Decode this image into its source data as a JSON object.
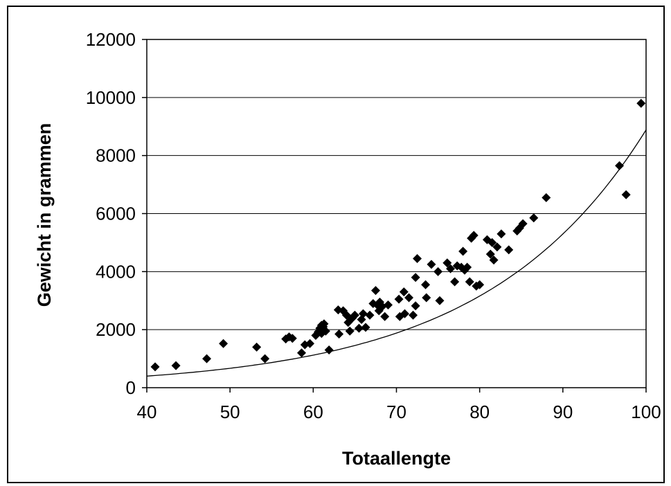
{
  "chart_data": {
    "type": "scatter",
    "title": "",
    "xlabel": "Totaallengte",
    "ylabel": "Gewicht in grammen",
    "xlim": [
      40,
      100
    ],
    "ylim": [
      0,
      12000
    ],
    "xticks": [
      40,
      50,
      60,
      70,
      80,
      90,
      100
    ],
    "yticks": [
      0,
      2000,
      4000,
      6000,
      8000,
      10000,
      12000
    ],
    "grid": "horizontal",
    "legend": "none",
    "marker": "diamond",
    "colors": {
      "marker": "#000000",
      "trendline": "#000000",
      "grid": "#000000"
    },
    "points": [
      [
        41.0,
        720
      ],
      [
        43.5,
        760
      ],
      [
        47.2,
        1000
      ],
      [
        49.2,
        1520
      ],
      [
        53.2,
        1400
      ],
      [
        54.2,
        1000
      ],
      [
        56.7,
        1680
      ],
      [
        57.1,
        1750
      ],
      [
        57.5,
        1700
      ],
      [
        58.6,
        1200
      ],
      [
        59.0,
        1480
      ],
      [
        59.6,
        1520
      ],
      [
        60.3,
        1800
      ],
      [
        60.6,
        1920
      ],
      [
        60.8,
        2050
      ],
      [
        61.0,
        2150
      ],
      [
        61.3,
        2200
      ],
      [
        61.0,
        1870
      ],
      [
        61.5,
        1950
      ],
      [
        61.9,
        1300
      ],
      [
        61.2,
        2100
      ],
      [
        63.0,
        2680
      ],
      [
        63.1,
        1850
      ],
      [
        63.6,
        2650
      ],
      [
        64.0,
        2500
      ],
      [
        64.2,
        2250
      ],
      [
        64.4,
        1950
      ],
      [
        64.7,
        2400
      ],
      [
        65.0,
        2500
      ],
      [
        65.5,
        2050
      ],
      [
        65.8,
        2350
      ],
      [
        66.0,
        2550
      ],
      [
        66.3,
        2080
      ],
      [
        66.8,
        2500
      ],
      [
        67.2,
        2900
      ],
      [
        67.5,
        3350
      ],
      [
        67.7,
        2850
      ],
      [
        67.9,
        2650
      ],
      [
        68.0,
        2950
      ],
      [
        68.3,
        2800
      ],
      [
        68.6,
        2450
      ],
      [
        69.0,
        2850
      ],
      [
        70.3,
        3050
      ],
      [
        70.4,
        2450
      ],
      [
        70.9,
        3300
      ],
      [
        71.0,
        2550
      ],
      [
        71.5,
        3100
      ],
      [
        72.0,
        2500
      ],
      [
        72.3,
        2820
      ],
      [
        72.3,
        3800
      ],
      [
        72.5,
        4450
      ],
      [
        73.5,
        3550
      ],
      [
        73.6,
        3100
      ],
      [
        74.2,
        4250
      ],
      [
        75.0,
        4000
      ],
      [
        75.2,
        3000
      ],
      [
        76.1,
        4300
      ],
      [
        76.5,
        4100
      ],
      [
        77.0,
        3650
      ],
      [
        77.3,
        4200
      ],
      [
        77.8,
        4150
      ],
      [
        78.0,
        4700
      ],
      [
        78.2,
        4050
      ],
      [
        78.5,
        4150
      ],
      [
        78.8,
        3650
      ],
      [
        79.0,
        5150
      ],
      [
        79.3,
        5250
      ],
      [
        79.6,
        3500
      ],
      [
        80.0,
        3550
      ],
      [
        80.9,
        5100
      ],
      [
        81.3,
        4600
      ],
      [
        81.5,
        5000
      ],
      [
        81.7,
        4400
      ],
      [
        82.1,
        4850
      ],
      [
        82.6,
        5300
      ],
      [
        83.5,
        4750
      ],
      [
        84.5,
        5400
      ],
      [
        84.8,
        5500
      ],
      [
        85.2,
        5650
      ],
      [
        86.5,
        5850
      ],
      [
        88.0,
        6550
      ],
      [
        96.8,
        7650
      ],
      [
        97.6,
        6650
      ],
      [
        99.4,
        9800
      ]
    ],
    "trendline": {
      "type": "exponential",
      "a": 50.4,
      "b": 0.05172
    }
  }
}
